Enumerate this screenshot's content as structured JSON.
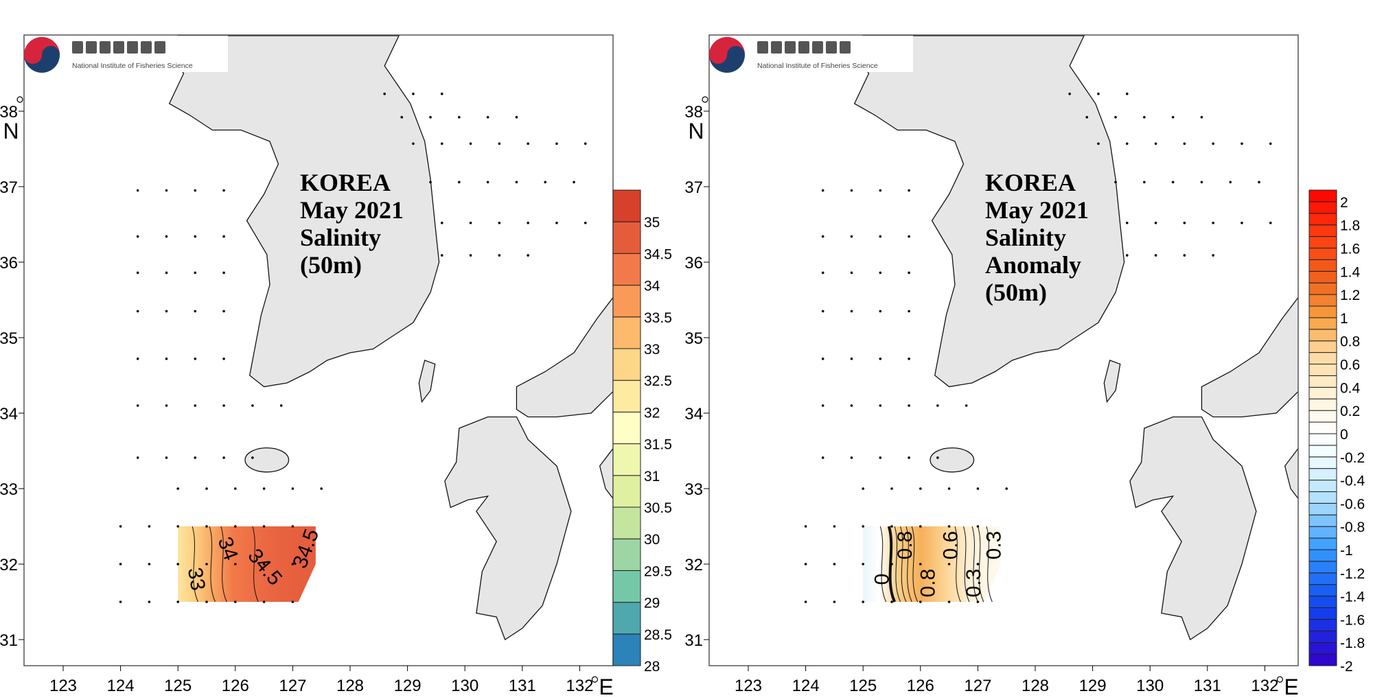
{
  "logo": {
    "korean_name": "국립수산과학원",
    "english_name": "National Institute of Fisheries Science",
    "colors": {
      "blue": "#1d3f6e",
      "red": "#d6243c"
    }
  },
  "chart_data": [
    {
      "type": "heatmap",
      "title_lines": [
        "KOREA",
        "May 2021",
        "Salinity",
        "(50m)"
      ],
      "xlabel": "E",
      "ylabel": "N",
      "x_ticks": [
        "123",
        "124",
        "125",
        "126",
        "127",
        "128",
        "129",
        "130",
        "131",
        "132"
      ],
      "y_ticks": [
        "31",
        "32",
        "33",
        "34",
        "35",
        "36",
        "37",
        "38"
      ],
      "xlim": [
        122.3,
        132.6
      ],
      "ylim": [
        30.65,
        39.0
      ],
      "colorbar": {
        "labels": [
          "28",
          "28.5",
          "29",
          "29.5",
          "30",
          "30.5",
          "31",
          "31.5",
          "32",
          "32.5",
          "33",
          "33.5",
          "34",
          "34.5",
          "35"
        ],
        "colors": [
          "#2b83ba",
          "#4fa8ae",
          "#74c8a8",
          "#9dd5a4",
          "#c4e59e",
          "#dff0a0",
          "#eff7ae",
          "#ffffc5",
          "#feeaa0",
          "#fdd688",
          "#fdb96c",
          "#fa9a58",
          "#f2794a",
          "#e55c3b",
          "#d7402b"
        ]
      },
      "contour_labels": [
        "33",
        "34",
        "34.5",
        "34.5"
      ],
      "field_region": {
        "lon": [
          125.0,
          127.4
        ],
        "lat": [
          31.5,
          32.5
        ]
      }
    },
    {
      "type": "heatmap",
      "title_lines": [
        "KOREA",
        "May 2021",
        "Salinity",
        "Anomaly",
        "(50m)"
      ],
      "xlabel": "E",
      "ylabel": "N",
      "x_ticks": [
        "123",
        "124",
        "125",
        "126",
        "127",
        "128",
        "129",
        "130",
        "131",
        "132"
      ],
      "y_ticks": [
        "31",
        "32",
        "33",
        "34",
        "35",
        "36",
        "37",
        "38"
      ],
      "xlim": [
        122.3,
        132.6
      ],
      "ylim": [
        30.65,
        39.0
      ],
      "colorbar": {
        "labels": [
          "-2",
          "-1.8",
          "-1.6",
          "-1.4",
          "-1.2",
          "-1",
          "-0.8",
          "-0.6",
          "-0.4",
          "-0.2",
          "0",
          "0.2",
          "0.4",
          "0.6",
          "0.8",
          "1",
          "1.2",
          "1.4",
          "1.6",
          "1.8",
          "2"
        ],
        "range": [
          -2,
          2.1
        ],
        "step": 0.1,
        "anchors": [
          [
            -2,
            "#3300cc"
          ],
          [
            -1.5,
            "#1144ee"
          ],
          [
            -1,
            "#3399ff"
          ],
          [
            -0.6,
            "#aaddff"
          ],
          [
            -0.2,
            "#eefcff"
          ],
          [
            0,
            "#ffffff"
          ],
          [
            0.3,
            "#fff5dd"
          ],
          [
            0.7,
            "#fed9a0"
          ],
          [
            1,
            "#f8a040"
          ],
          [
            1.3,
            "#ee6620"
          ],
          [
            1.7,
            "#ff4010"
          ],
          [
            2.1,
            "#ff0000"
          ]
        ]
      },
      "contour_labels": [
        "0",
        "0.8",
        "0.8",
        "0.6",
        "0.3",
        "0.3"
      ],
      "field_region": {
        "lon": [
          125.0,
          127.4
        ],
        "lat": [
          31.5,
          32.5
        ]
      }
    }
  ],
  "stations": [
    {
      "lat": 38.23,
      "lon": [
        128.6,
        130.0
      ]
    },
    {
      "lat": 37.92,
      "lon": [
        128.9,
        131.2
      ]
    },
    {
      "lat": 37.57,
      "lon": [
        129.1,
        132.3
      ]
    },
    {
      "lat": 37.06,
      "lon": [
        129.4,
        132.3
      ]
    },
    {
      "lat": 36.95,
      "lon": [
        124.3,
        126.1
      ]
    },
    {
      "lat": 36.52,
      "lon": [
        129.6,
        132.3
      ]
    },
    {
      "lat": 36.34,
      "lon": [
        124.3,
        126.0
      ]
    },
    {
      "lat": 36.09,
      "lon": [
        129.6,
        131.3
      ]
    },
    {
      "lat": 35.86,
      "lon": [
        124.3,
        126.1
      ]
    },
    {
      "lat": 35.35,
      "lon": [
        124.3,
        126.1
      ]
    },
    {
      "lat": 34.72,
      "lon": [
        124.3,
        126.1
      ]
    },
    {
      "lat": 34.1,
      "lon": [
        124.3,
        127.0
      ]
    },
    {
      "lat": 33.41,
      "lon": [
        124.3,
        126.3
      ]
    },
    {
      "lat": 33.0,
      "lon": [
        125.0,
        127.7
      ]
    },
    {
      "lat": 32.5,
      "lon": [
        124.0,
        127.4
      ]
    },
    {
      "lat": 32.0,
      "lon": [
        124.0,
        127.4
      ]
    },
    {
      "lat": 31.5,
      "lon": [
        124.0,
        127.1
      ]
    }
  ]
}
